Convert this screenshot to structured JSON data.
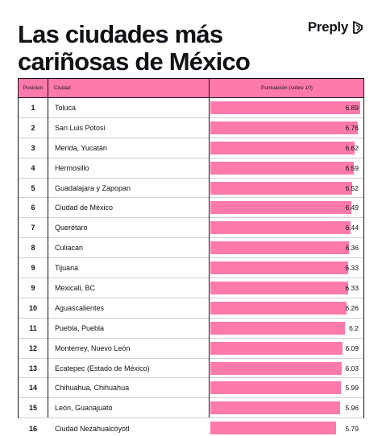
{
  "header": {
    "title_line1": "Las ciudades más",
    "title_line2": "cariñosas de México",
    "brand": "Preply"
  },
  "table": {
    "col_position": "Posicion",
    "col_city": "Ciudad",
    "col_score": "Puntuación (sobre 10)"
  },
  "colors": {
    "accent": "#ff7aac",
    "text": "#121117"
  },
  "chart_data": {
    "type": "bar",
    "title": "Las ciudades más cariñosas de México",
    "ylabel": "Puntuación (sobre 10)",
    "ylim": [
      0,
      10
    ],
    "rows": [
      {
        "rank": "1",
        "city": "Toluca",
        "value": 6.89,
        "label": "6.89"
      },
      {
        "rank": "2",
        "city": "San Luis Potosí",
        "value": 6.76,
        "label": "6.76"
      },
      {
        "rank": "3",
        "city": "Merida, Yucatán",
        "value": 6.62,
        "label": "6.62"
      },
      {
        "rank": "4",
        "city": "Hermosillo",
        "value": 6.59,
        "label": "6.59"
      },
      {
        "rank": "5",
        "city": "Guadalajara y Zapopan",
        "value": 6.52,
        "label": "6.52"
      },
      {
        "rank": "6",
        "city": "Ciudad de México",
        "value": 6.49,
        "label": "6.49"
      },
      {
        "rank": "7",
        "city": "Querétaro",
        "value": 6.44,
        "label": "6.44"
      },
      {
        "rank": "8",
        "city": "Culiacan",
        "value": 6.36,
        "label": "6.36"
      },
      {
        "rank": "9",
        "city": "Tijuana",
        "value": 6.33,
        "label": "6.33"
      },
      {
        "rank": "9",
        "city": "Mexicali, BC",
        "value": 6.33,
        "label": "6.33"
      },
      {
        "rank": "10",
        "city": "Aguascalientes",
        "value": 6.26,
        "label": "6.26"
      },
      {
        "rank": "11",
        "city": "Puebla, Puebla",
        "value": 6.2,
        "label": "6.2"
      },
      {
        "rank": "12",
        "city": "Monterrey, Nuevo León",
        "value": 6.09,
        "label": "6.09"
      },
      {
        "rank": "13",
        "city": "Ecatepec (Estado de México)",
        "value": 6.03,
        "label": "6.03"
      },
      {
        "rank": "14",
        "city": "Chihuahua, Chihuahua",
        "value": 5.99,
        "label": "5.99"
      },
      {
        "rank": "15",
        "city": "León, Guanajuato",
        "value": 5.96,
        "label": "5.96"
      },
      {
        "rank": "16",
        "city": "Ciudad Nezahualcóyotl",
        "value": 5.79,
        "label": "5.79"
      }
    ]
  }
}
